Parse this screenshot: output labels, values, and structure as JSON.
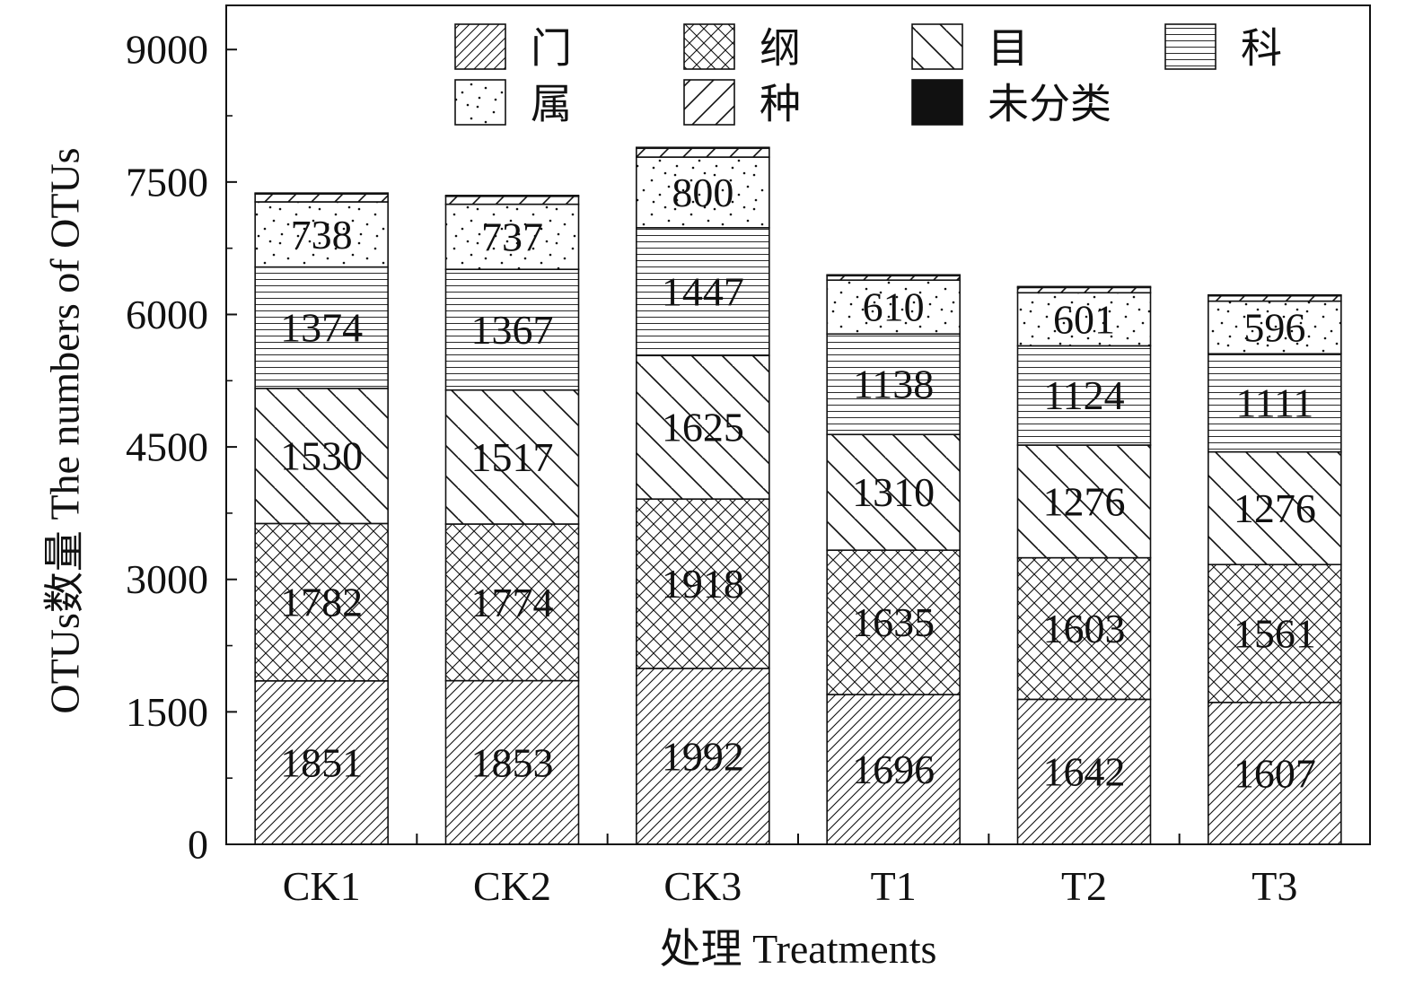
{
  "chart_data": {
    "type": "bar",
    "stacked": true,
    "title": "",
    "xlabel": "处理 Treatments",
    "ylabel": "OTUs数量 The numbers of OTUs",
    "ylim": [
      0,
      9500
    ],
    "yticks": [
      0,
      1500,
      3000,
      4500,
      6000,
      7500,
      9000
    ],
    "yticks_text": [
      "0",
      "1500",
      "3000",
      "4500",
      "6000",
      "7500",
      "9000"
    ],
    "grid": false,
    "legend_position": "top",
    "categories": [
      "CK1",
      "CK2",
      "CK3",
      "T1",
      "T2",
      "T3"
    ],
    "series": [
      {
        "name": "门",
        "pattern": "diag-fine",
        "values": [
          1851,
          1853,
          1992,
          1696,
          1642,
          1607
        ],
        "labels": [
          "1851",
          "1853",
          "1992",
          "1696",
          "1642",
          "1607"
        ]
      },
      {
        "name": "纲",
        "pattern": "crosshatch",
        "values": [
          1782,
          1774,
          1918,
          1635,
          1603,
          1561
        ],
        "labels": [
          "1782",
          "1774",
          "1918",
          "1635",
          "1603",
          "1561"
        ]
      },
      {
        "name": "目",
        "pattern": "backslash",
        "values": [
          1530,
          1517,
          1625,
          1310,
          1276,
          1276
        ],
        "labels": [
          "1530",
          "1517",
          "1625",
          "1310",
          "1276",
          "1276"
        ]
      },
      {
        "name": "科",
        "pattern": "horizontal",
        "values": [
          1374,
          1367,
          1447,
          1138,
          1124,
          1111
        ],
        "labels": [
          "1374",
          "1367",
          "1447",
          "1138",
          "1124",
          "1111"
        ]
      },
      {
        "name": "属",
        "pattern": "dots",
        "values": [
          738,
          737,
          800,
          610,
          601,
          596
        ],
        "labels": [
          "738",
          "737",
          "800",
          "610",
          "601",
          "596"
        ]
      },
      {
        "name": "种",
        "pattern": "diag-coarse",
        "values": [
          90,
          90,
          100,
          50,
          60,
          60
        ],
        "labels": [
          "",
          "",
          "",
          "",
          "",
          ""
        ]
      },
      {
        "name": "未分类",
        "pattern": "solid",
        "values": [
          10,
          10,
          10,
          10,
          10,
          10
        ],
        "labels": [
          "",
          "",
          "",
          "",
          "",
          ""
        ]
      }
    ],
    "colors": {
      "stroke": "#111111",
      "fill_solid": "#111111",
      "background": "#ffffff"
    }
  }
}
